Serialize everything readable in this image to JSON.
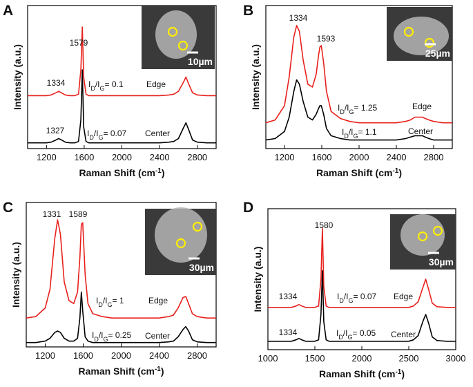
{
  "chart_data": [
    {
      "type": "line",
      "panel": "A",
      "xlabel": "Raman Shift (cm-1)",
      "ylabel": "Intensity (a.u.)",
      "xlim": [
        1000,
        3000
      ],
      "xticks": [
        1200,
        1600,
        2000,
        2400,
        2800
      ],
      "ylim": [
        0,
        100
      ],
      "x": [
        1000,
        1100,
        1200,
        1250,
        1300,
        1330,
        1360,
        1400,
        1450,
        1500,
        1540,
        1565,
        1580,
        1595,
        1620,
        1650,
        1700,
        1800,
        1900,
        2000,
        2100,
        2200,
        2300,
        2400,
        2500,
        2550,
        2600,
        2650,
        2680,
        2710,
        2750,
        2800,
        2900,
        3000
      ],
      "series": [
        {
          "name": "Edge",
          "color": "#e8201c",
          "values": [
            37,
            37,
            37,
            37.5,
            39,
            40,
            39,
            37.5,
            37,
            37,
            38,
            55,
            85,
            50,
            38,
            37,
            37,
            37,
            37,
            37,
            37,
            37,
            37,
            37,
            37.5,
            38,
            40,
            46,
            50,
            45,
            39,
            37.5,
            37,
            37
          ]
        },
        {
          "name": "Center",
          "color": "#000000",
          "values": [
            4,
            4,
            4,
            4.5,
            6,
            7,
            6,
            4.5,
            4,
            4,
            5,
            20,
            55,
            15,
            5,
            4,
            4,
            4,
            4,
            4,
            4,
            4,
            4,
            4,
            4.5,
            5,
            7,
            14,
            18,
            13,
            6,
            4.5,
            4,
            4
          ]
        }
      ],
      "peak_labels": [
        1579,
        1334,
        1327
      ],
      "ratio_labels": [
        "ID/IG= 0.1",
        "ID/IG= 0.07"
      ],
      "scale_bar": "10µm"
    },
    {
      "type": "line",
      "panel": "B",
      "xlabel": "Raman Shift (cm-1)",
      "ylabel": "Intensity (a.u.)",
      "xlim": [
        1000,
        3000
      ],
      "xticks": [
        1200,
        1600,
        2000,
        2400,
        2800
      ],
      "ylim": [
        0,
        100
      ],
      "x": [
        1000,
        1100,
        1200,
        1250,
        1300,
        1330,
        1360,
        1400,
        1450,
        1500,
        1540,
        1565,
        1580,
        1595,
        1620,
        1650,
        1700,
        1800,
        1900,
        2000,
        2100,
        2200,
        2300,
        2400,
        2500,
        2550,
        2600,
        2650,
        2680,
        2710,
        2750,
        2800,
        2900,
        3000
      ],
      "series": [
        {
          "name": "Edge",
          "color": "#e8201c",
          "values": [
            18,
            20,
            30,
            50,
            78,
            86,
            82,
            62,
            45,
            43,
            52,
            65,
            71,
            72,
            60,
            40,
            26,
            21,
            19,
            18,
            18,
            18,
            18,
            18,
            19,
            20,
            22,
            22,
            22,
            21,
            20,
            19,
            18,
            18
          ]
        },
        {
          "name": "Center",
          "color": "#000000",
          "values": [
            6,
            7,
            12,
            22,
            40,
            48,
            45,
            33,
            22,
            20,
            24,
            28,
            30,
            30,
            24,
            14,
            9,
            7,
            6,
            6,
            6,
            6,
            6,
            6,
            7,
            8,
            9,
            9,
            9,
            8,
            7,
            6,
            6,
            6
          ]
        }
      ],
      "peak_labels": [
        1334,
        1593
      ],
      "ratio_labels": [
        "ID/IG= 1.25",
        "ID/IG= 1.1"
      ],
      "scale_bar": "25µm"
    },
    {
      "type": "line",
      "panel": "C",
      "xlabel": "Raman Shift (cm-1)",
      "ylabel": "Intensity (a.u.)",
      "xlim": [
        1000,
        3000
      ],
      "xticks": [
        1200,
        1600,
        2000,
        2400,
        2800
      ],
      "ylim": [
        0,
        100
      ],
      "x": [
        1000,
        1100,
        1200,
        1250,
        1300,
        1330,
        1360,
        1400,
        1450,
        1500,
        1540,
        1565,
        1580,
        1595,
        1620,
        1650,
        1700,
        1800,
        1900,
        2000,
        2100,
        2200,
        2300,
        2400,
        2500,
        2550,
        2600,
        2650,
        2680,
        2710,
        2750,
        2800,
        2900,
        3000
      ],
      "series": [
        {
          "name": "Edge",
          "color": "#e8201c",
          "values": [
            20,
            21,
            27,
            40,
            75,
            88,
            78,
            45,
            32,
            30,
            38,
            62,
            85,
            86,
            50,
            30,
            23,
            21,
            20,
            20,
            20,
            20,
            20,
            20,
            21,
            22,
            27,
            34,
            35,
            30,
            23,
            21,
            20,
            20
          ]
        },
        {
          "name": "Center",
          "color": "#000000",
          "values": [
            3,
            3,
            4,
            6,
            10,
            11,
            10,
            6,
            4,
            4,
            6,
            20,
            38,
            25,
            7,
            4,
            3,
            3,
            3,
            3,
            3,
            3,
            3,
            3,
            3.5,
            4,
            7,
            12,
            14,
            11,
            5,
            3.5,
            3,
            3
          ]
        }
      ],
      "peak_labels": [
        1331,
        1589
      ],
      "ratio_labels": [
        "ID/IG= 1",
        "ID/IG= 0.25"
      ],
      "scale_bar": "30µm"
    },
    {
      "type": "line",
      "panel": "D",
      "xlabel": "Raman Shift (cm-1)",
      "ylabel": "Intensity (a.u.)",
      "xlim": [
        1000,
        3000
      ],
      "xticks": [
        1000,
        1500,
        2000,
        2500,
        3000
      ],
      "ylim": [
        0,
        100
      ],
      "x": [
        1000,
        1100,
        1200,
        1250,
        1300,
        1330,
        1360,
        1400,
        1450,
        1500,
        1540,
        1565,
        1580,
        1595,
        1620,
        1650,
        1700,
        1800,
        1900,
        2000,
        2100,
        2200,
        2300,
        2400,
        2500,
        2550,
        2600,
        2650,
        2680,
        2710,
        2750,
        2800,
        2900,
        3000
      ],
      "series": [
        {
          "name": "Edge",
          "color": "#e8201c",
          "values": [
            30,
            30,
            30,
            30,
            31,
            32,
            31,
            30,
            30,
            30,
            31,
            50,
            86,
            45,
            31,
            30,
            30,
            30,
            30,
            30,
            30,
            30,
            30,
            30,
            30,
            31,
            34,
            44,
            50,
            43,
            33,
            30.5,
            30,
            30
          ]
        },
        {
          "name": "Center",
          "color": "#000000",
          "values": [
            6,
            6,
            6,
            6,
            7,
            8,
            7,
            6,
            6,
            6,
            7,
            25,
            56,
            20,
            7,
            6,
            6,
            6,
            6,
            6,
            6,
            6,
            6,
            6,
            6,
            7,
            10,
            20,
            25,
            19,
            9,
            6.5,
            6,
            6
          ]
        }
      ],
      "peak_labels": [
        1580,
        1334,
        1334
      ],
      "ratio_labels": [
        "ID/IG= 0.07",
        "ID/IG= 0.05"
      ],
      "scale_bar": "30µm"
    }
  ]
}
